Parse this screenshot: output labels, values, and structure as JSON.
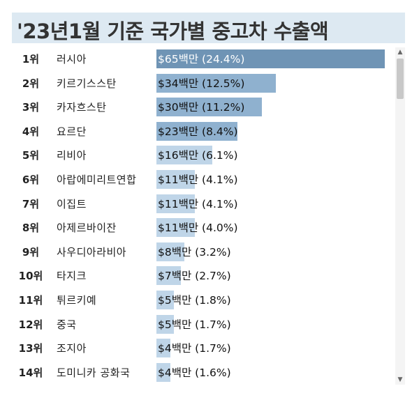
{
  "title": "'23년1월 기준 국가별 중고차 수출액",
  "colors": {
    "title_bg": "#dde9f2",
    "bar_dark": "#6f94b5",
    "bar_mid": "#8fb1cf",
    "bar_light": "#bfd5e8"
  },
  "icons": {
    "scroll_up": "chevron-up-icon",
    "scroll_down": "chevron-down-icon"
  },
  "chart_data": {
    "type": "bar",
    "orientation": "horizontal",
    "ranks": [
      "1위",
      "2위",
      "3위",
      "4위",
      "5위",
      "6위",
      "7위",
      "8위",
      "9위",
      "10위",
      "11위",
      "12위",
      "13위",
      "14위"
    ],
    "categories": [
      "러시아",
      "키르기스스탄",
      "카자흐스탄",
      "요르단",
      "리비아",
      "아랍에미리트연합",
      "이집트",
      "아제르바이잔",
      "사우디아라비아",
      "타지크",
      "튀르키예",
      "중국",
      "조지아",
      "도미니카 공화국"
    ],
    "values": [
      65,
      34,
      30,
      23,
      16,
      11,
      11,
      11,
      8,
      7,
      5,
      5,
      4,
      4
    ],
    "shares": [
      24.4,
      12.5,
      11.2,
      8.4,
      6.1,
      4.1,
      4.1,
      4.0,
      3.2,
      2.7,
      1.8,
      1.7,
      1.7,
      1.6
    ],
    "labels": [
      "$65백만 (24.4%)",
      "$34백만 (12.5%)",
      "$30백만 (11.2%)",
      "$23백만 (8.4%)",
      "$16백만 (6.1%)",
      "$11백만 (4.1%)",
      "$11백만 (4.1%)",
      "$11백만 (4.0%)",
      "$8백만 (3.2%)",
      "$7백만 (2.7%)",
      "$5백만 (1.8%)",
      "$5백만 (1.7%)",
      "$4백만 (1.7%)",
      "$4백만 (1.6%)"
    ],
    "xlim": [
      0,
      65
    ]
  }
}
